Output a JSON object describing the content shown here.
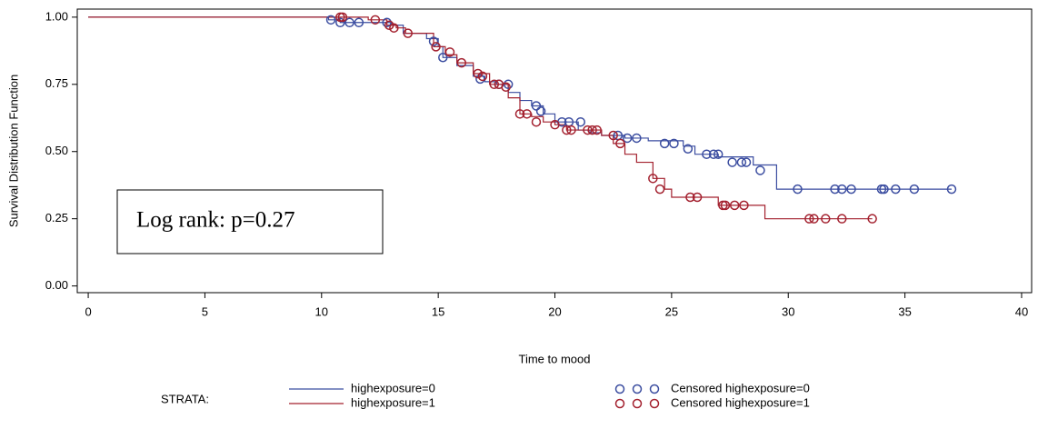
{
  "chart_data": {
    "type": "step",
    "xlabel": "Time to mood",
    "ylabel": "Survival Distribution Function",
    "annotation": "Log rank: p=0.27",
    "legend_title": "STRATA:",
    "xlim": [
      -0.47,
      40.43
    ],
    "ylim": [
      -0.025,
      1.03
    ],
    "xticks": [
      0,
      5,
      10,
      15,
      20,
      25,
      30,
      35,
      40
    ],
    "yticks": [
      {
        "value": 0,
        "label": "0.00"
      },
      {
        "value": 0.25,
        "label": "0.25"
      },
      {
        "value": 0.5,
        "label": "0.50"
      },
      {
        "value": 0.75,
        "label": "0.75"
      },
      {
        "value": 1,
        "label": "1.00"
      }
    ],
    "series": [
      {
        "name": "highexposure=0",
        "color": "#3b4da0",
        "x": [
          0,
          10.3,
          10.8,
          12.5,
          13.0,
          13.5,
          14.5,
          15.0,
          15.2,
          15.8,
          16.5,
          17.0,
          17.5,
          18.0,
          18.5,
          19.0,
          19.5,
          20.0,
          21.0,
          21.5,
          22.0,
          23.0,
          24.0,
          25.5,
          26.0,
          27.0,
          28.5,
          29.5,
          37.0
        ],
        "values": [
          1.0,
          0.99,
          0.98,
          0.98,
          0.97,
          0.94,
          0.92,
          0.89,
          0.85,
          0.82,
          0.78,
          0.76,
          0.75,
          0.72,
          0.69,
          0.67,
          0.64,
          0.61,
          0.58,
          0.57,
          0.56,
          0.55,
          0.54,
          0.52,
          0.49,
          0.48,
          0.45,
          0.36,
          0.36
        ]
      },
      {
        "name": "highexposure=1",
        "color": "#a3202e",
        "x": [
          0,
          10.8,
          12.0,
          12.8,
          13.2,
          13.6,
          14.8,
          15.3,
          15.8,
          16.5,
          17.2,
          18.0,
          18.5,
          19.0,
          19.5,
          20.0,
          20.5,
          21.0,
          22.0,
          22.5,
          23.0,
          23.5,
          24.2,
          24.7,
          25.0,
          26.5,
          27.0,
          29.0,
          33.6
        ],
        "values": [
          1.0,
          1.0,
          0.99,
          0.97,
          0.96,
          0.94,
          0.89,
          0.86,
          0.83,
          0.79,
          0.75,
          0.7,
          0.64,
          0.63,
          0.61,
          0.6,
          0.58,
          0.58,
          0.56,
          0.53,
          0.49,
          0.46,
          0.4,
          0.36,
          0.33,
          0.33,
          0.3,
          0.25,
          0.25
        ]
      }
    ],
    "censored_series": [
      {
        "name": "Censored highexposure=0",
        "color": "#3b4da0",
        "x": [
          10.4,
          10.8,
          11.2,
          11.6,
          12.8,
          14.8,
          15.2,
          16.8,
          17.6,
          18.0,
          19.2,
          19.4,
          20.3,
          20.6,
          21.1,
          22.7,
          23.1,
          23.5,
          24.7,
          25.1,
          25.7,
          26.5,
          26.8,
          27.0,
          27.6,
          28.0,
          28.2,
          28.8,
          30.4,
          32.0,
          32.3,
          32.7,
          34.0,
          34.1,
          34.6,
          35.4,
          37.0
        ],
        "values": [
          0.99,
          0.98,
          0.98,
          0.98,
          0.98,
          0.91,
          0.85,
          0.77,
          0.75,
          0.75,
          0.67,
          0.65,
          0.61,
          0.61,
          0.61,
          0.56,
          0.55,
          0.55,
          0.53,
          0.53,
          0.51,
          0.49,
          0.49,
          0.49,
          0.46,
          0.46,
          0.46,
          0.43,
          0.36,
          0.36,
          0.36,
          0.36,
          0.36,
          0.36,
          0.36,
          0.36,
          0.36
        ]
      },
      {
        "name": "Censored highexposure=1",
        "color": "#a3202e",
        "x": [
          10.8,
          10.9,
          12.3,
          12.9,
          13.1,
          13.7,
          14.9,
          15.5,
          16.0,
          16.7,
          16.9,
          17.4,
          17.6,
          17.9,
          18.5,
          18.8,
          19.2,
          20.0,
          20.5,
          20.7,
          21.4,
          21.6,
          21.8,
          22.5,
          22.8,
          24.2,
          24.5,
          25.8,
          26.1,
          27.2,
          27.3,
          27.7,
          28.1,
          30.9,
          31.1,
          31.6,
          32.3,
          33.6
        ],
        "values": [
          1.0,
          1.0,
          0.99,
          0.97,
          0.96,
          0.94,
          0.89,
          0.87,
          0.83,
          0.79,
          0.78,
          0.75,
          0.75,
          0.74,
          0.64,
          0.64,
          0.61,
          0.6,
          0.58,
          0.58,
          0.58,
          0.58,
          0.58,
          0.56,
          0.53,
          0.4,
          0.36,
          0.33,
          0.33,
          0.3,
          0.3,
          0.3,
          0.3,
          0.25,
          0.25,
          0.25,
          0.25,
          0.25
        ]
      }
    ]
  }
}
